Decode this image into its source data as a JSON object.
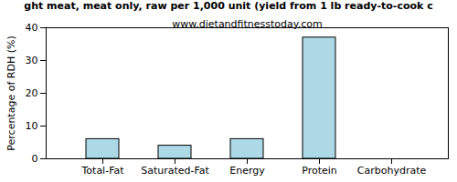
{
  "chart_data": {
    "type": "bar",
    "title": "ght meat, meat only, raw per 1,000 unit (yield from 1 lb ready-to-cook c",
    "subtitle": "www.dietandfitnesstoday.com",
    "y_label": "Percentage of RDH (%)",
    "categories": [
      "Total-Fat",
      "Saturated-Fat",
      "Energy",
      "Protein",
      "Carbohydrate"
    ],
    "values": [
      6,
      4,
      6,
      37,
      0
    ],
    "color": "#add8e6",
    "ylim": [
      0,
      40
    ],
    "yticks": [
      0,
      10,
      20,
      30,
      40
    ],
    "grid": false
  }
}
